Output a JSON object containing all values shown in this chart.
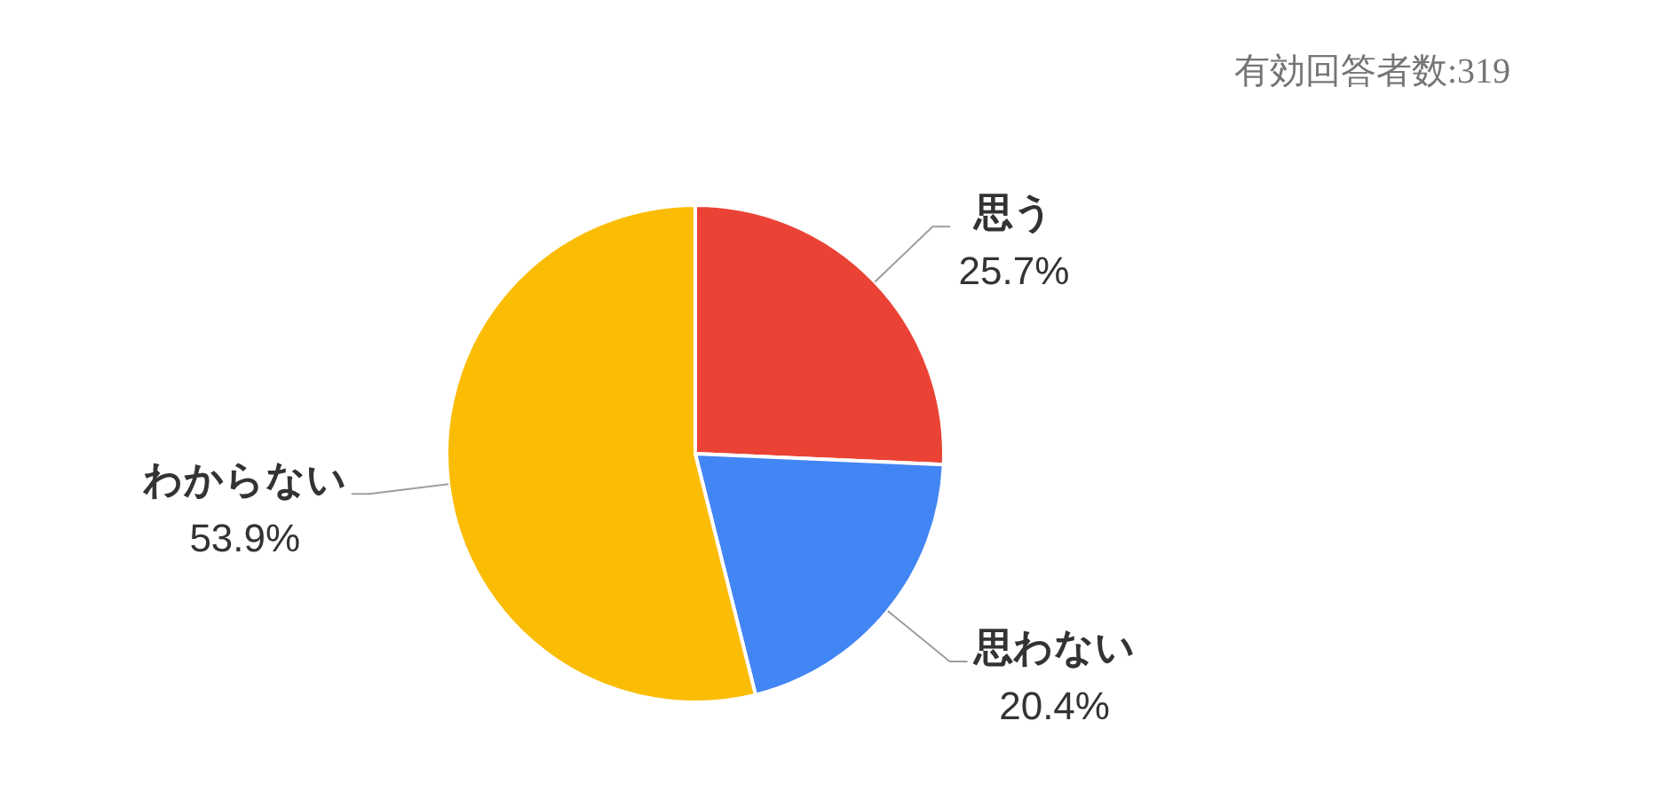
{
  "chart_data": {
    "type": "pie",
    "categories": [
      "思う",
      "思わない",
      "わからない"
    ],
    "values": [
      25.7,
      20.4,
      53.9
    ],
    "colors": [
      "#ea4335",
      "#4285f4",
      "#fbbc04"
    ],
    "value_labels": [
      "25.7%",
      "20.4%",
      "53.9%"
    ],
    "annotations": [
      "有効回答者数:319"
    ]
  }
}
